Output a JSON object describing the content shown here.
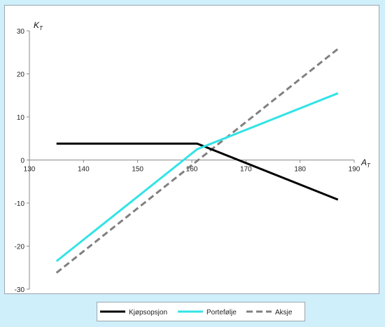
{
  "chart_data": {
    "type": "line",
    "title": "",
    "xlabel": "A",
    "xlabel_sub": "T",
    "ylabel": "K",
    "ylabel_sub": "T",
    "xlim": [
      130,
      190
    ],
    "ylim": [
      -30,
      30
    ],
    "x_ticks": [
      130,
      140,
      150,
      160,
      170,
      180,
      190
    ],
    "y_ticks": [
      30,
      20,
      10,
      0,
      -10,
      -20,
      -30
    ],
    "grid": false,
    "legend_position": "bottom",
    "series": [
      {
        "name": "Kjøpsopsjon",
        "color": "#000000",
        "style": "solid",
        "points": [
          [
            135,
            3.8
          ],
          [
            161,
            3.8
          ],
          [
            187,
            -9.2
          ]
        ]
      },
      {
        "name": "Portefølje",
        "color": "#33e3e6",
        "style": "solid",
        "points": [
          [
            135,
            -23.5
          ],
          [
            161,
            2.5
          ],
          [
            187,
            15.5
          ]
        ]
      },
      {
        "name": "Aksje",
        "color": "#808080",
        "style": "dashed",
        "points": [
          [
            135,
            -26.2
          ],
          [
            187,
            25.8
          ]
        ]
      }
    ]
  }
}
